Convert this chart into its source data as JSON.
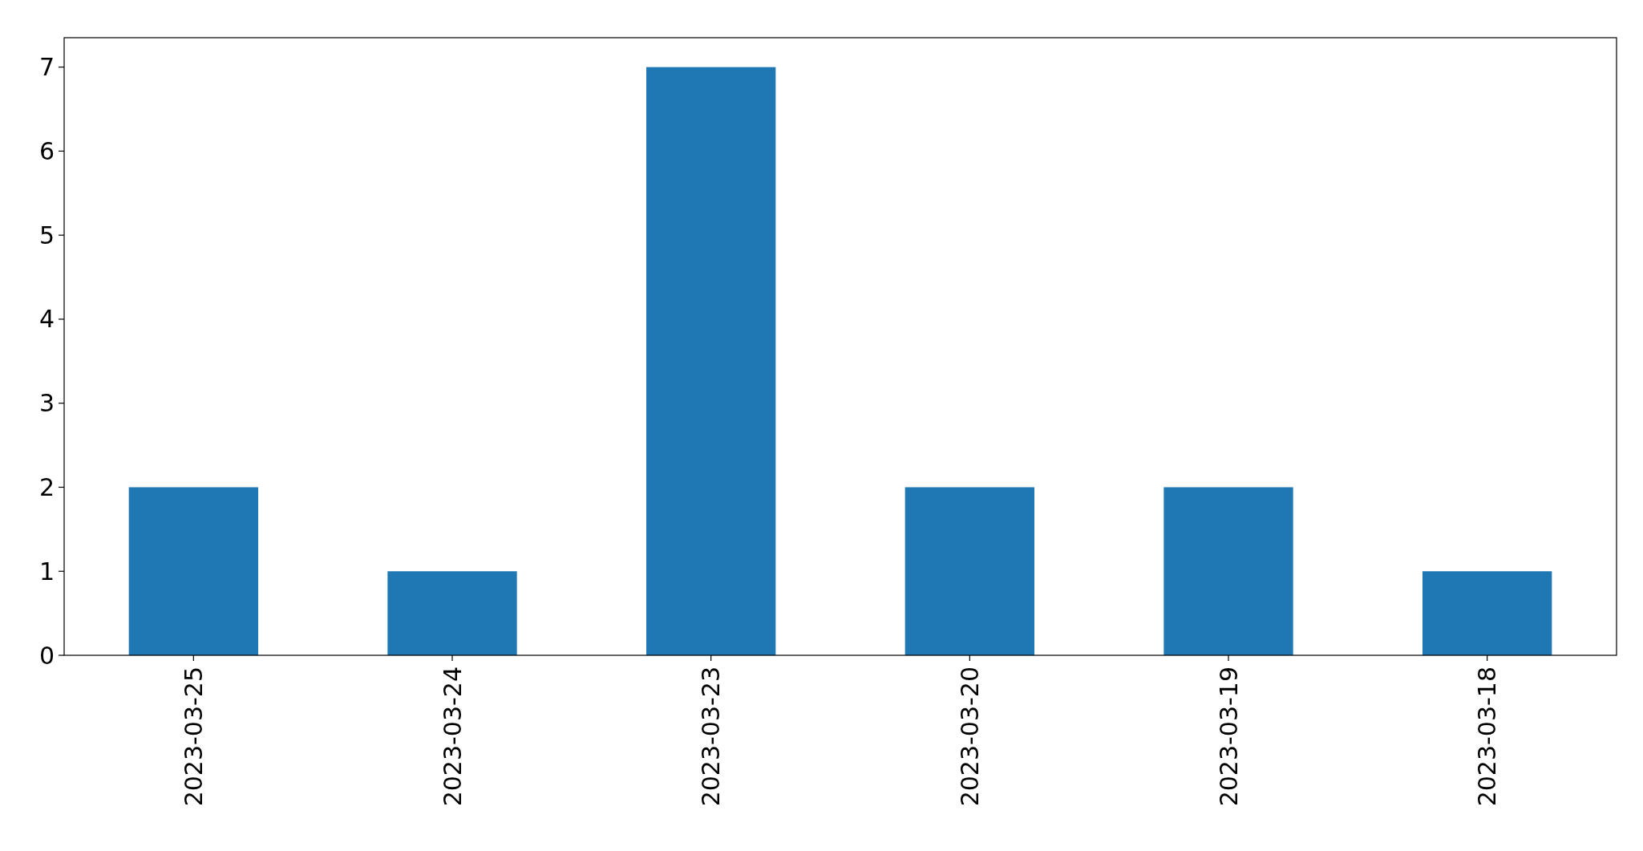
{
  "chart_data": {
    "type": "bar",
    "categories": [
      "2023-03-25",
      "2023-03-24",
      "2023-03-23",
      "2023-03-20",
      "2023-03-19",
      "2023-03-18"
    ],
    "values": [
      2,
      1,
      7,
      2,
      2,
      1
    ],
    "color": "#1f77b4",
    "ylim": [
      0,
      7.35
    ],
    "yticks": [
      0,
      1,
      2,
      3,
      4,
      5,
      6,
      7
    ],
    "grid": false
  }
}
